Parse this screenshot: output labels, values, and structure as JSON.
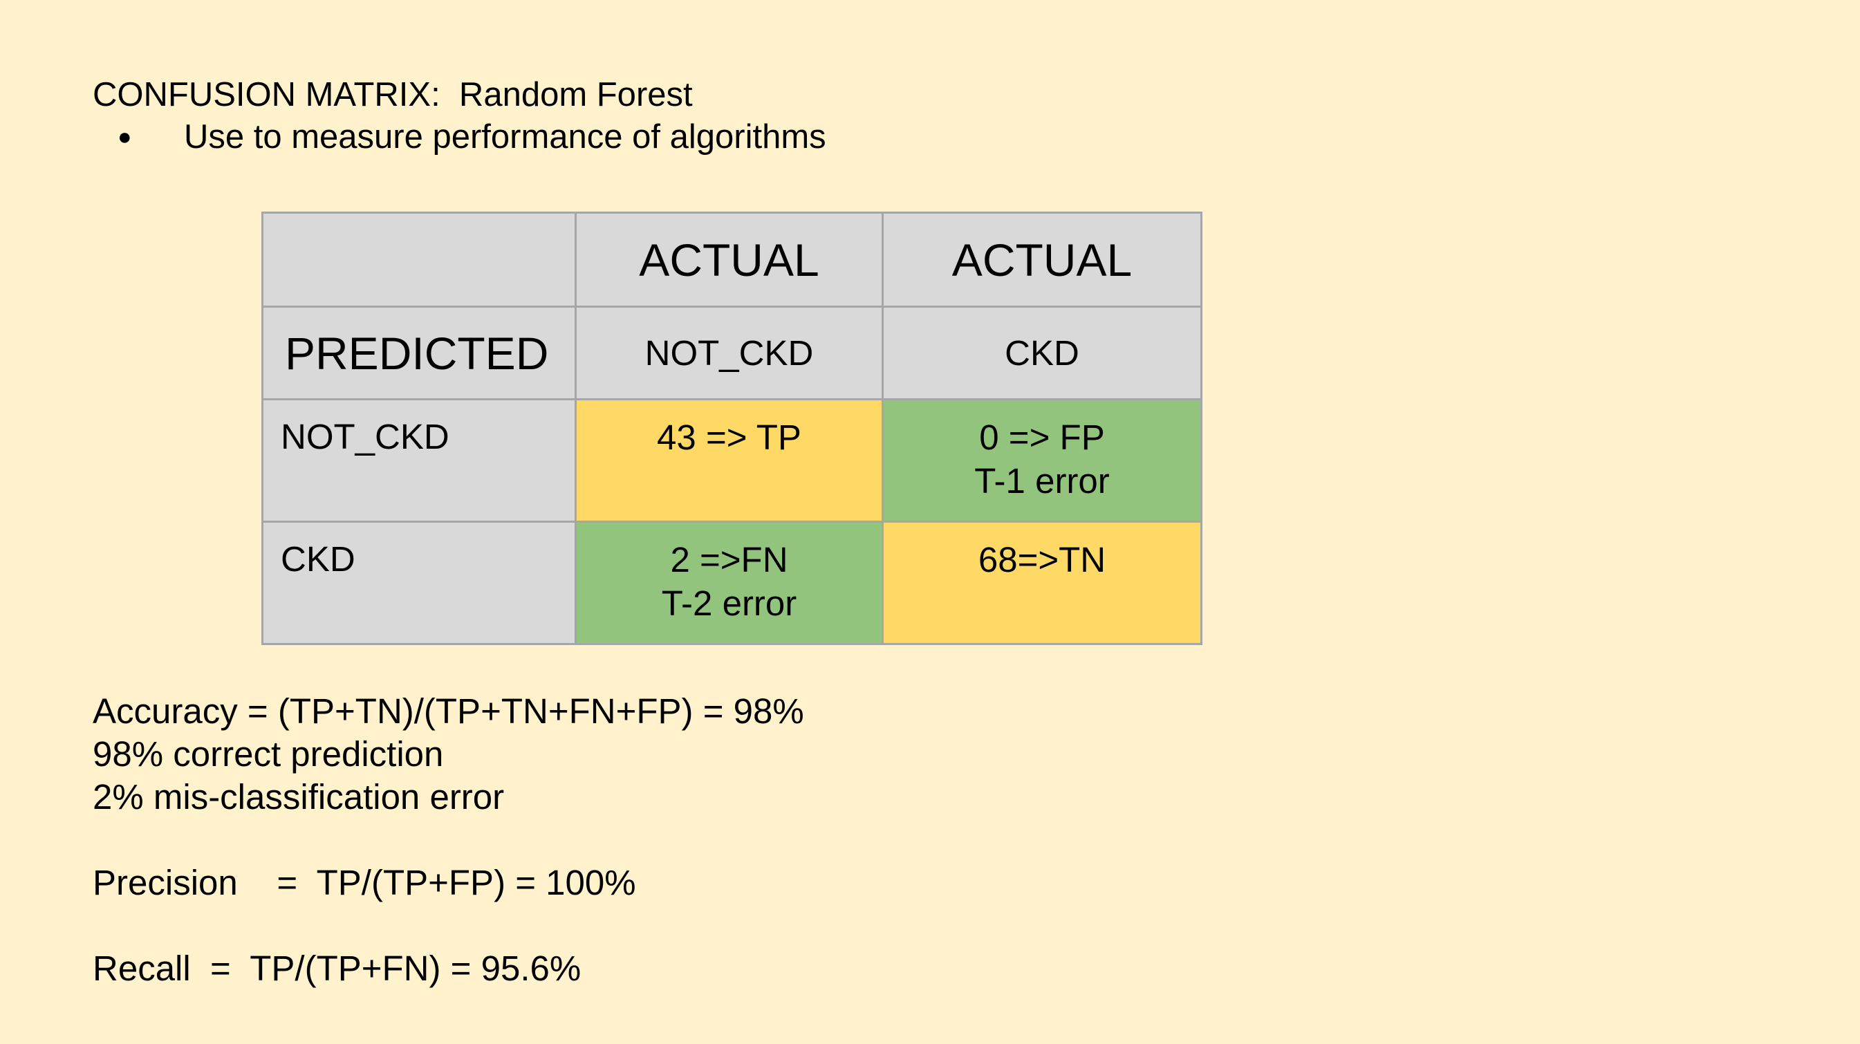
{
  "slide": {
    "title": "CONFUSION MATRIX:  Random Forest",
    "bullet": "Use to measure performance of algorithms",
    "colors": {
      "background": "#FFF2CC",
      "header_cell": "#D9D9D9",
      "true_cell": "#FFD966",
      "error_cell": "#93C47D"
    }
  },
  "matrix": {
    "header_row": [
      "",
      "ACTUAL",
      "ACTUAL"
    ],
    "subheader_row": [
      "PREDICTED",
      "NOT_CKD",
      "CKD"
    ],
    "rows": [
      {
        "label": "NOT_CKD",
        "cells": [
          "43 => TP",
          "0 => FP\nT-1 error"
        ]
      },
      {
        "label": "CKD",
        "cells": [
          "2 =>FN\nT-2 error",
          "68=>TN"
        ]
      }
    ]
  },
  "metrics": {
    "accuracy": "Accuracy = (TP+TN)/(TP+TN+FN+FP) = 98%",
    "correct": "98% correct prediction",
    "misclass": "2% mis-classification error",
    "precision": "Precision    =  TP/(TP+FP) = 100%",
    "recall": "Recall  =  TP/(TP+FN) = 95.6%"
  }
}
